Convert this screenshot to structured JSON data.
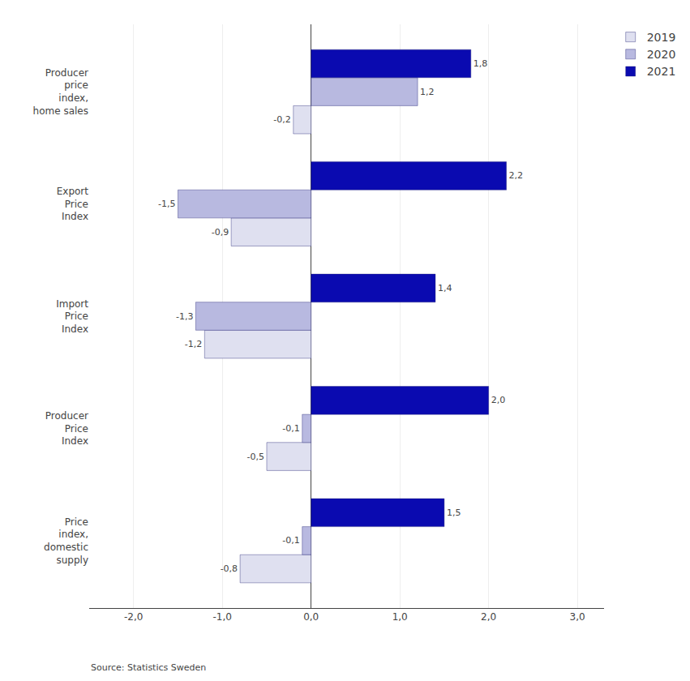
{
  "chart_data": {
    "type": "bar",
    "orientation": "horizontal",
    "categories": [
      "Price\nindex,\ndomestic\nsupply",
      "Producer\nPrice\nIndex",
      "Import\nPrice\nIndex",
      "Export\nPrice\nIndex",
      "Producer\nprice\nindex,\nhome sales"
    ],
    "series": [
      {
        "name": "2019",
        "color": "#dfe0f0",
        "values": [
          -0.8,
          -0.5,
          -1.2,
          -0.9,
          -0.2
        ],
        "value_labels": [
          "-0,8",
          "-0,5",
          "-1,2",
          "-0,9",
          "-0,2"
        ]
      },
      {
        "name": "2020",
        "color": "#b8b9e0",
        "values": [
          -0.1,
          -0.1,
          -1.3,
          -1.5,
          1.2
        ],
        "value_labels": [
          "-0,1",
          "-0,1",
          "-1,3",
          "-1,5",
          "1,2"
        ]
      },
      {
        "name": "2021",
        "color": "#0a0ab0",
        "values": [
          1.5,
          2.0,
          1.4,
          2.2,
          1.8
        ],
        "value_labels": [
          "1,5",
          "2,0",
          "1,4",
          "2,2",
          "1,8"
        ]
      }
    ],
    "xlim": [
      -2.5,
      3.3
    ],
    "xticks": [
      {
        "value": -2.0,
        "label": "-2,0"
      },
      {
        "value": -1.0,
        "label": "-1,0"
      },
      {
        "value": 0.0,
        "label": "0,0"
      },
      {
        "value": 1.0,
        "label": "1,0"
      },
      {
        "value": 2.0,
        "label": "2,0"
      },
      {
        "value": 3.0,
        "label": "3,0"
      }
    ],
    "grid": true,
    "legend": "upper right",
    "data_labels": true,
    "annotations": [
      "Source: Statistics Sweden"
    ]
  }
}
